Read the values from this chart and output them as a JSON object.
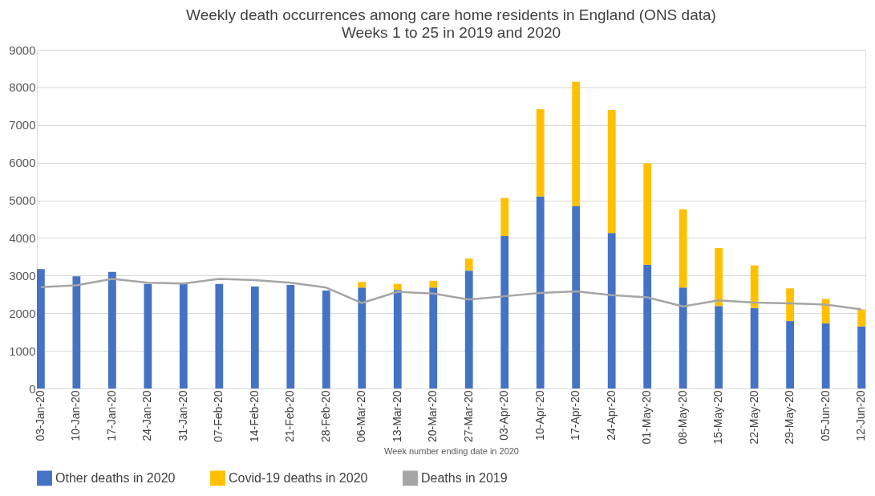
{
  "chart_data": {
    "type": "bar",
    "title": "Weekly death occurrences among care home residents in England (ONS data)",
    "subtitle": "Weeks 1 to 25 in 2019 and 2020",
    "xlabel": "Week number ending date in 2020",
    "categories": [
      "03-Jan-20",
      "10-Jan-20",
      "17-Jan-20",
      "24-Jan-20",
      "31-Jan-20",
      "07-Feb-20",
      "14-Feb-20",
      "21-Feb-20",
      "28-Feb-20",
      "06-Mar-20",
      "13-Mar-20",
      "20-Mar-20",
      "27-Mar-20",
      "03-Apr-20",
      "10-Apr-20",
      "17-Apr-20",
      "24-Apr-20",
      "01-May-20",
      "08-May-20",
      "15-May-20",
      "22-May-20",
      "29-May-20",
      "05-Jun-20",
      "12-Jun-20"
    ],
    "series": [
      {
        "name": "Other deaths in 2020",
        "color": "#4472c4",
        "values": [
          3170,
          2980,
          3100,
          2780,
          2800,
          2780,
          2710,
          2750,
          2600,
          2680,
          2620,
          2680,
          3130,
          4050,
          5100,
          4840,
          4130,
          3290,
          2680,
          2190,
          2140,
          1790,
          1730,
          1650
        ]
      },
      {
        "name": "Covid-19 deaths in 2020",
        "color": "#ffc000",
        "values": [
          0,
          0,
          0,
          0,
          0,
          0,
          0,
          0,
          0,
          150,
          160,
          180,
          320,
          1010,
          2320,
          3310,
          3270,
          2690,
          2080,
          1540,
          1130,
          870,
          650,
          450
        ]
      },
      {
        "name": "Deaths in 2019",
        "color": "#a5a5a5",
        "type": "line",
        "values": [
          2690,
          2740,
          2910,
          2810,
          2790,
          2910,
          2880,
          2810,
          2680,
          2270,
          2570,
          2520,
          2360,
          2450,
          2540,
          2580,
          2480,
          2420,
          2180,
          2340,
          2280,
          2260,
          2230,
          2100
        ]
      }
    ],
    "stacked": true,
    "ylim": [
      0,
      9000
    ],
    "yticks": [
      0,
      1000,
      2000,
      3000,
      4000,
      5000,
      6000,
      7000,
      8000,
      9000
    ],
    "grid": "y",
    "legend": "bottom"
  }
}
